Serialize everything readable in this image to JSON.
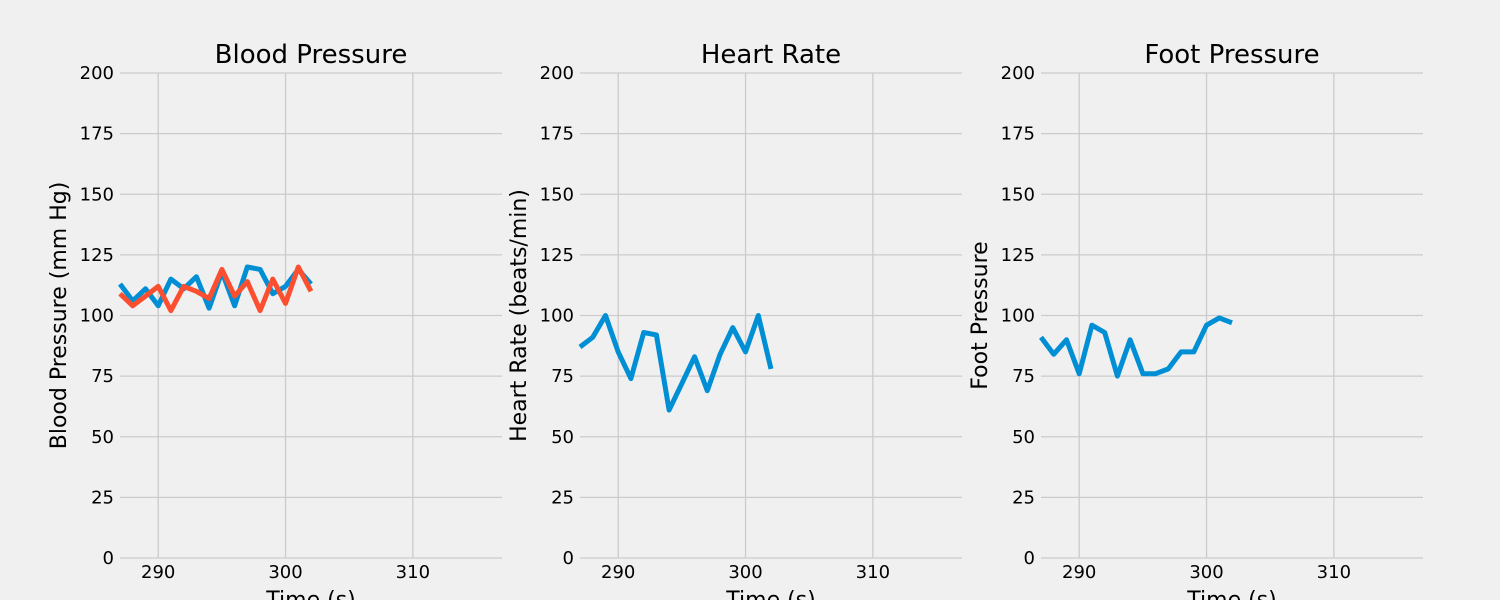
{
  "chart_data": [
    {
      "type": "line",
      "title": "Blood Pressure",
      "xlabel": "Time (s)",
      "ylabel": "Blood Pressure (mm Hg)",
      "xlim": [
        287,
        317
      ],
      "ylim": [
        0,
        200
      ],
      "xticks": [
        290,
        300,
        310
      ],
      "yticks": [
        0,
        25,
        50,
        75,
        100,
        125,
        150,
        175,
        200
      ],
      "grid": true,
      "series": [
        {
          "color": "#008fd5",
          "x": [
            287,
            288,
            289,
            290,
            291,
            292,
            293,
            294,
            295,
            296,
            297,
            298,
            299,
            300,
            301,
            302
          ],
          "y": [
            113,
            106,
            111,
            104,
            115,
            111,
            116,
            103,
            118,
            104,
            120,
            119,
            109,
            112,
            119,
            113
          ]
        },
        {
          "color": "#fc4f30",
          "x": [
            287,
            288,
            289,
            290,
            291,
            292,
            293,
            294,
            295,
            296,
            297,
            298,
            299,
            300,
            301,
            302
          ],
          "y": [
            109,
            104,
            108,
            112,
            102,
            112,
            110,
            107,
            119,
            108,
            114,
            102,
            115,
            105,
            120,
            110
          ]
        }
      ]
    },
    {
      "type": "line",
      "title": "Heart Rate",
      "xlabel": "Time (s)",
      "ylabel": "Heart Rate (beats/min)",
      "xlim": [
        287,
        317
      ],
      "ylim": [
        0,
        200
      ],
      "xticks": [
        290,
        300,
        310
      ],
      "yticks": [
        0,
        25,
        50,
        75,
        100,
        125,
        150,
        175,
        200
      ],
      "grid": true,
      "series": [
        {
          "color": "#008fd5",
          "x": [
            287,
            288,
            289,
            290,
            291,
            292,
            293,
            294,
            295,
            296,
            297,
            298,
            299,
            300,
            301,
            302
          ],
          "y": [
            87,
            91,
            100,
            85,
            74,
            93,
            92,
            61,
            72,
            83,
            69,
            84,
            95,
            85,
            100,
            78
          ]
        }
      ]
    },
    {
      "type": "line",
      "title": "Foot Pressure",
      "xlabel": "Time (s)",
      "ylabel": "Foot Pressure",
      "xlim": [
        287,
        317
      ],
      "ylim": [
        0,
        200
      ],
      "xticks": [
        290,
        300,
        310
      ],
      "yticks": [
        0,
        25,
        50,
        75,
        100,
        125,
        150,
        175,
        200
      ],
      "grid": true,
      "series": [
        {
          "color": "#008fd5",
          "x": [
            287,
            288,
            289,
            290,
            291,
            292,
            293,
            294,
            295,
            296,
            297,
            298,
            299,
            300,
            301,
            302
          ],
          "y": [
            91,
            84,
            90,
            76,
            96,
            93,
            75,
            90,
            76,
            76,
            78,
            85,
            85,
            96,
            99,
            97
          ]
        }
      ]
    }
  ]
}
